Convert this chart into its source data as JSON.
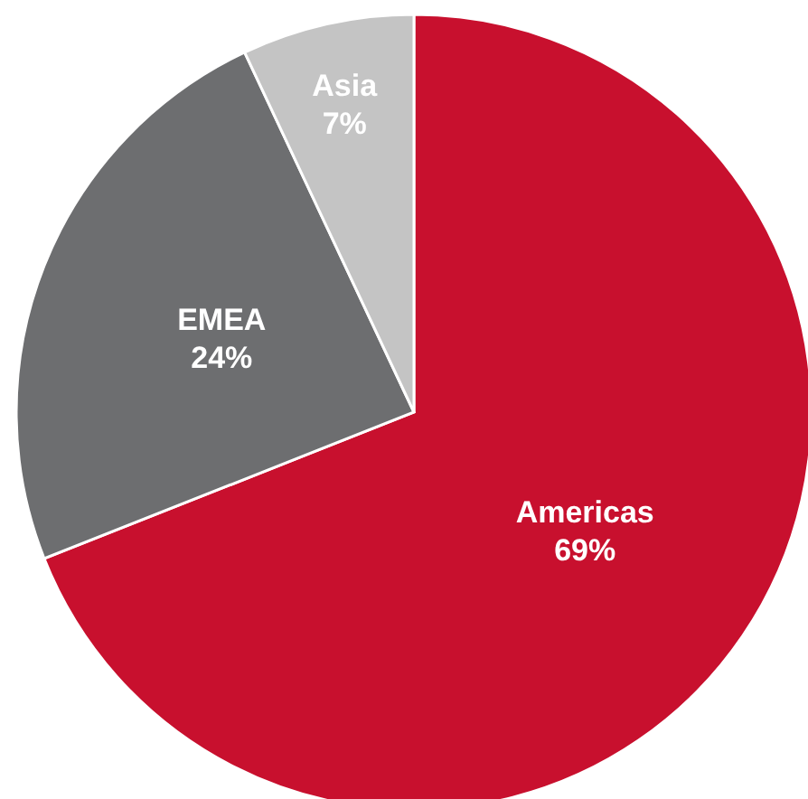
{
  "chart_data": {
    "type": "pie",
    "categories": [
      "Americas",
      "EMEA",
      "Asia"
    ],
    "values": [
      69,
      24,
      7
    ],
    "colors": [
      "#c8102e",
      "#6d6e70",
      "#c4c4c4"
    ],
    "value_labels": [
      "69%",
      "24%",
      "7%"
    ]
  }
}
